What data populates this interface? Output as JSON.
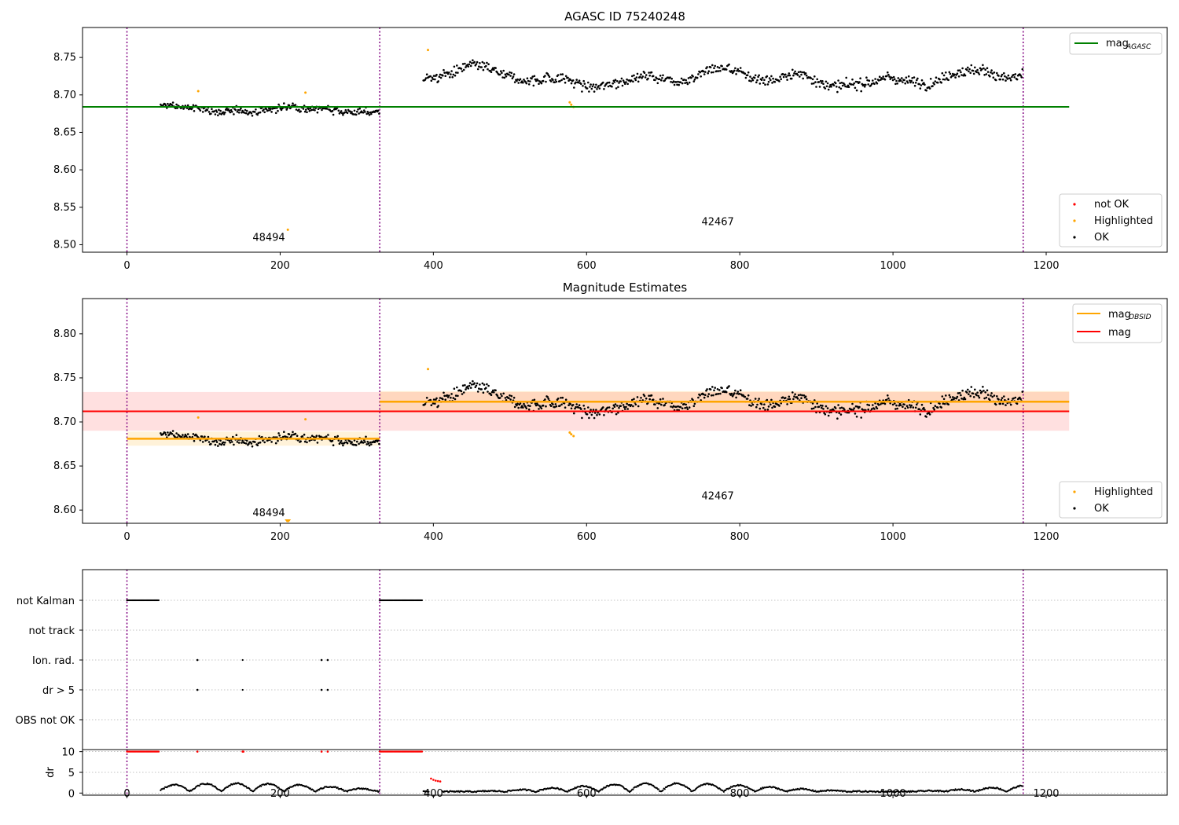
{
  "chart_data": [
    {
      "type": "scatter",
      "title": "AGASC ID 75240248",
      "xlim": [
        -58,
        1358
      ],
      "ylim": [
        8.49,
        8.79
      ],
      "xticks": [
        0,
        200,
        400,
        600,
        800,
        1000,
        1200
      ],
      "yticks": [
        8.5,
        8.55,
        8.6,
        8.65,
        8.7,
        8.75
      ],
      "ytick_labels": [
        "8.50",
        "8.55",
        "8.60",
        "8.65",
        "8.70",
        "8.75"
      ],
      "obs_boundaries": [
        0,
        330,
        1170
      ],
      "obs_labels": [
        {
          "text": "48494",
          "x": 164,
          "y": 8.505
        },
        {
          "text": "42467",
          "x": 750,
          "y": 8.526
        }
      ],
      "reference_line": {
        "name": "mag_AGASC",
        "value": 8.684,
        "x_range": [
          -58,
          1230
        ],
        "color": "#008000"
      },
      "segments": [
        {
          "x_start": 44,
          "x_end": 330,
          "mean": 8.681,
          "spread": 0.008
        },
        {
          "x_start": 387,
          "x_end": 1170,
          "mean": 8.723,
          "spread": 0.012
        }
      ],
      "highlighted_points": [
        [
          93,
          8.705
        ],
        [
          233,
          8.703
        ],
        [
          210,
          8.52
        ],
        [
          393,
          8.76
        ],
        [
          578,
          8.69
        ],
        [
          580,
          8.687
        ],
        [
          583,
          8.684
        ]
      ],
      "legend_lines": [
        {
          "label": "mag",
          "subscript": "AGASC",
          "color": "#008000"
        }
      ],
      "legend_points": [
        {
          "label": "not OK",
          "color": "#ff0000"
        },
        {
          "label": "Highlighted",
          "color": "#ffa500"
        },
        {
          "label": "OK",
          "color": "#000000"
        }
      ]
    },
    {
      "type": "scatter",
      "title": "Magnitude Estimates",
      "xlim": [
        -58,
        1358
      ],
      "ylim": [
        8.585,
        8.84
      ],
      "xticks": [
        0,
        200,
        400,
        600,
        800,
        1000,
        1200
      ],
      "yticks": [
        8.6,
        8.65,
        8.7,
        8.75,
        8.8
      ],
      "ytick_labels": [
        "8.60",
        "8.65",
        "8.70",
        "8.75",
        "8.80"
      ],
      "obs_boundaries": [
        0,
        330,
        1170
      ],
      "obs_labels": [
        {
          "text": "48494",
          "x": 164,
          "y": 8.593
        },
        {
          "text": "42467",
          "x": 750,
          "y": 8.612
        }
      ],
      "mag_line": {
        "name": "mag",
        "value": 8.712,
        "band": [
          8.69,
          8.734
        ],
        "x_range": [
          -58,
          1230
        ],
        "color": "#ff0000"
      },
      "obsid_lines": [
        {
          "x_range": [
            0,
            330
          ],
          "value": 8.681,
          "band": [
            8.673,
            8.689
          ]
        },
        {
          "x_range": [
            330,
            1230
          ],
          "value": 8.723,
          "band": [
            8.711,
            8.735
          ]
        }
      ],
      "highlighted_points": [
        [
          93,
          8.705
        ],
        [
          233,
          8.703
        ],
        [
          393,
          8.76
        ],
        [
          578,
          8.688
        ],
        [
          580,
          8.686
        ],
        [
          583,
          8.684
        ],
        [
          209,
          8.587
        ],
        [
          211,
          8.587
        ]
      ],
      "legend_lines": [
        {
          "label": "mag",
          "subscript": "OBSID",
          "color": "#ffa500"
        },
        {
          "label": "mag",
          "subscript": "",
          "color": "#ff0000"
        }
      ],
      "legend_points": [
        {
          "label": "Highlighted",
          "color": "#ffa500"
        },
        {
          "label": "OK",
          "color": "#000000"
        }
      ]
    },
    {
      "type": "scatter",
      "title": "",
      "xlim": [
        -58,
        1358
      ],
      "xticks": [
        0,
        200,
        400,
        600,
        800,
        1000,
        1200
      ],
      "flag_categories": [
        "not Kalman",
        "not track",
        "Ion. rad.",
        "dr > 5",
        "OBS not OK"
      ],
      "flag_events": {
        "not Kalman": [
          [
            0,
            42
          ],
          [
            330,
            386
          ]
        ],
        "not track": [],
        "Ion. rad.": [
          [
            92,
            92
          ],
          [
            151,
            152
          ],
          [
            254,
            254
          ],
          [
            262,
            262
          ]
        ],
        "dr > 5": [
          [
            92,
            92
          ],
          [
            151,
            152
          ],
          [
            254,
            254
          ],
          [
            262,
            262
          ]
        ]
      },
      "dr_axis": {
        "ylabel": "dr",
        "ylim": [
          -0.5,
          10.5
        ],
        "yticks": [
          0,
          5,
          10
        ],
        "cap": 10
      },
      "dr_red_runs": [
        [
          0,
          42
        ],
        [
          330,
          386
        ]
      ],
      "dr_red_points": [
        [
          92,
          10
        ],
        [
          151,
          10
        ],
        [
          152,
          10
        ],
        [
          254,
          10
        ],
        [
          262,
          10
        ],
        [
          397,
          3.5
        ],
        [
          400,
          3.2
        ],
        [
          403,
          3.0
        ],
        [
          406,
          2.9
        ],
        [
          409,
          2.8
        ]
      ],
      "obs_boundaries": [
        0,
        330,
        1170
      ]
    }
  ]
}
